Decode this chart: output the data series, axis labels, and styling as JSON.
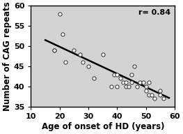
{
  "scatter_x": [
    18,
    18,
    20,
    21,
    22,
    25,
    27,
    28,
    30,
    32,
    35,
    38,
    39,
    40,
    40,
    41,
    42,
    43,
    43,
    44,
    45,
    45,
    46,
    47,
    48,
    49,
    50,
    50,
    51,
    51,
    52,
    53,
    55,
    55,
    56
  ],
  "scatter_y": [
    49,
    49,
    58,
    53,
    46,
    49,
    48,
    46,
    45,
    42,
    48,
    40,
    43,
    43,
    40,
    42,
    41,
    41,
    40,
    40,
    43,
    41,
    45,
    40,
    41,
    41,
    39,
    40,
    38,
    41,
    38,
    37,
    39,
    38,
    37
  ],
  "line_x": [
    15,
    58
  ],
  "line_y": [
    51.5,
    37.2
  ],
  "r_label": "r= 0.84",
  "xlabel": "Age of onset of HD (years)",
  "ylabel": "Number of CAG repeats",
  "xlim": [
    10,
    60
  ],
  "ylim": [
    35,
    60
  ],
  "xticks": [
    10,
    20,
    30,
    40,
    50,
    60
  ],
  "yticks": [
    35,
    40,
    45,
    50,
    55,
    60
  ],
  "fig_bg_color": "#ffffff",
  "ax_bg_color": "#d3d3d3",
  "scatter_color": "white",
  "scatter_edge_color": "#444444",
  "line_color": "black",
  "xlabel_fontsize": 8.5,
  "ylabel_fontsize": 8.5,
  "tick_fontsize": 8.0,
  "annotation_fontsize": 8.0
}
